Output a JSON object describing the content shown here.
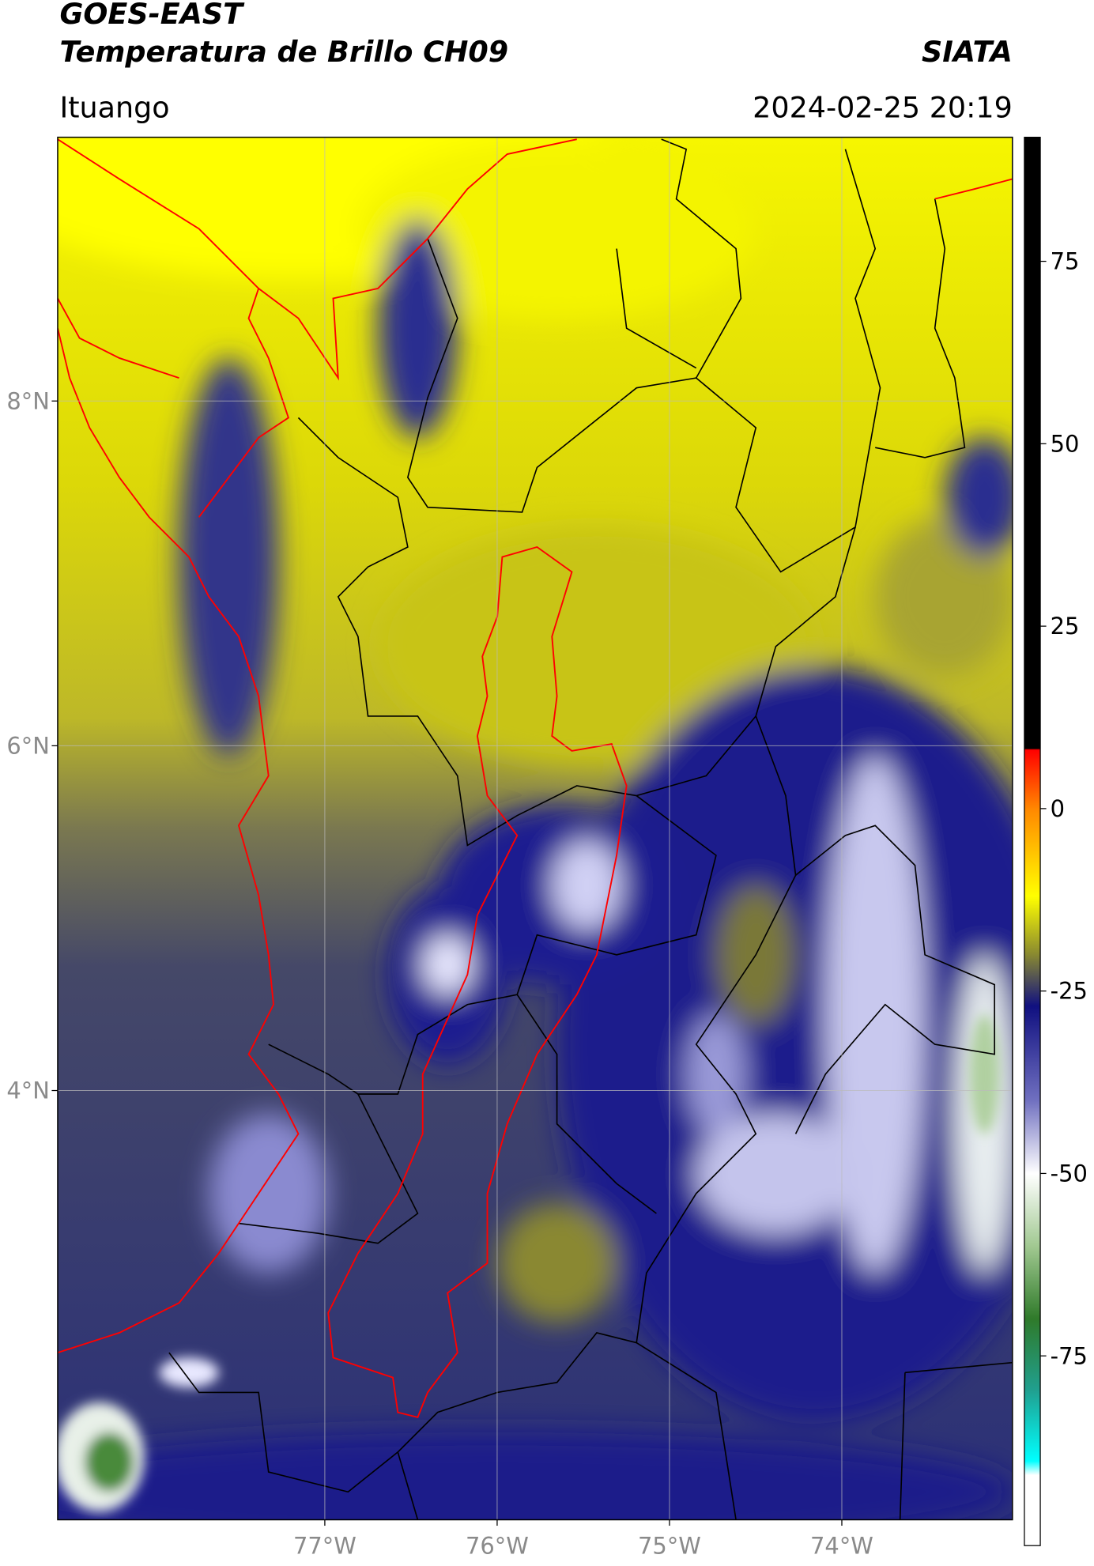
{
  "header": {
    "title": "GOES-EAST",
    "subtitle": "Temperatura de Brillo CH09",
    "source": "SIATA",
    "location": "Ituango",
    "datetime": "2024-02-25 20:19"
  },
  "map": {
    "lonlim": [
      -78.55,
      -73.01
    ],
    "latlim": [
      1.51,
      9.53
    ],
    "lon_ticks": [
      {
        "value": -77,
        "label": "77°W"
      },
      {
        "value": -76,
        "label": "76°W"
      },
      {
        "value": -75,
        "label": "75°W"
      },
      {
        "value": -74,
        "label": "74°W"
      }
    ],
    "lat_ticks": [
      {
        "value": 8,
        "label": "8°N"
      },
      {
        "value": 6,
        "label": "6°N"
      },
      {
        "value": 4,
        "label": "4°N"
      }
    ]
  },
  "colorbar": {
    "range": [
      -101,
      92
    ],
    "ticks": [
      75,
      50,
      25,
      0,
      -25,
      -50,
      -75
    ]
  }
}
